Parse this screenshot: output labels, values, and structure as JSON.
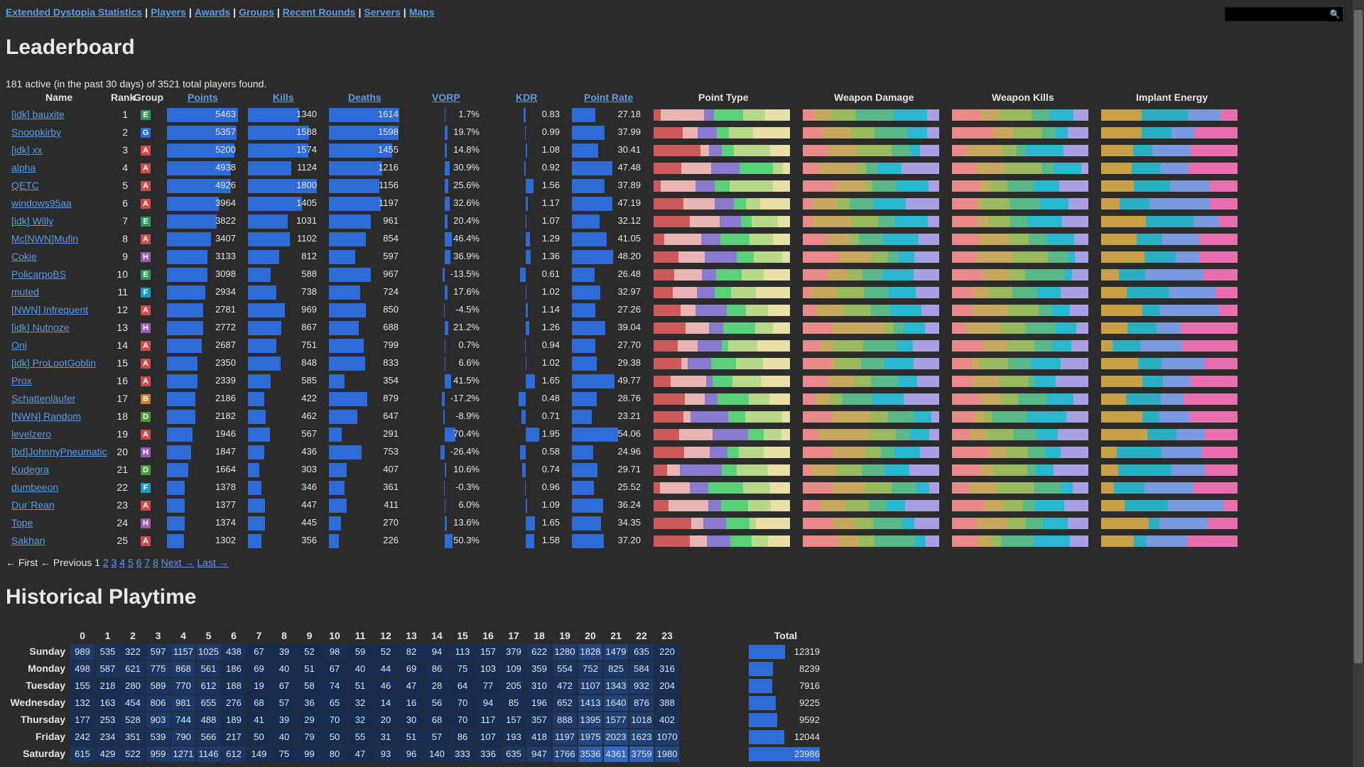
{
  "nav": {
    "links": [
      "Extended Dystopia Statistics",
      "Players",
      "Awards",
      "Groups",
      "Recent Rounds",
      "Servers",
      "Maps"
    ],
    "search_icon": "magnifier-icon"
  },
  "leaderboard": {
    "title": "Leaderboard",
    "summary": "181 active (in the past 30 days) of 3521 total players found.",
    "headers": {
      "name": "Name",
      "rank": "Rank",
      "group": "Group",
      "points": "Points",
      "kills": "Kills",
      "deaths": "Deaths",
      "vorp": "VORP",
      "kdr": "KDR",
      "point_rate": "Point Rate",
      "point_type": "Point Type",
      "weapon_damage": "Weapon Damage",
      "weapon_kills": "Weapon Kills",
      "implant_energy": "Implant Energy"
    },
    "group_colors": {
      "E": "#2a9c5a",
      "G": "#2a6bd6",
      "A": "#d04a4a",
      "H": "#9a5ab0",
      "F": "#1a9ac0",
      "B": "#d07a2a",
      "D": "#4a9a3a"
    },
    "rows": [
      {
        "name": "[idk] bauxite",
        "rank": "1",
        "group": "E",
        "points": "5463",
        "kills": "1340",
        "deaths": "1614",
        "vorp": "1.7%",
        "kdr": "0.83",
        "rate": "27.18"
      },
      {
        "name": "Snoopkirby",
        "rank": "2",
        "group": "G",
        "points": "5357",
        "kills": "1588",
        "deaths": "1598",
        "vorp": "19.7%",
        "kdr": "0.99",
        "rate": "37.99"
      },
      {
        "name": "[idk] xx",
        "rank": "3",
        "group": "A",
        "points": "5200",
        "kills": "1574",
        "deaths": "1455",
        "vorp": "14.8%",
        "kdr": "1.08",
        "rate": "30.41"
      },
      {
        "name": "alpha",
        "rank": "4",
        "group": "A",
        "points": "4938",
        "kills": "1124",
        "deaths": "1216",
        "vorp": "30.9%",
        "kdr": "0.92",
        "rate": "47.48"
      },
      {
        "name": "QETC",
        "rank": "5",
        "group": "A",
        "points": "4926",
        "kills": "1800",
        "deaths": "1156",
        "vorp": "25.6%",
        "kdr": "1.56",
        "rate": "37.89"
      },
      {
        "name": "windows95aa",
        "rank": "6",
        "group": "A",
        "points": "3964",
        "kills": "1405",
        "deaths": "1197",
        "vorp": "32.6%",
        "kdr": "1.17",
        "rate": "47.19"
      },
      {
        "name": "[idk] Willy",
        "rank": "7",
        "group": "E",
        "points": "3822",
        "kills": "1031",
        "deaths": "961",
        "vorp": "20.4%",
        "kdr": "1.07",
        "rate": "32.12"
      },
      {
        "name": "Mc[NWN]Mufin",
        "rank": "8",
        "group": "A",
        "points": "3407",
        "kills": "1102",
        "deaths": "854",
        "vorp": "46.4%",
        "kdr": "1.29",
        "rate": "41.05"
      },
      {
        "name": "Cokie",
        "rank": "9",
        "group": "H",
        "points": "3133",
        "kills": "812",
        "deaths": "597",
        "vorp": "36.9%",
        "kdr": "1.36",
        "rate": "48.20"
      },
      {
        "name": "PolicarpoBS",
        "rank": "10",
        "group": "E",
        "points": "3098",
        "kills": "588",
        "deaths": "967",
        "vorp": "-13.5%",
        "kdr": "0.61",
        "rate": "26.48"
      },
      {
        "name": "muted",
        "rank": "11",
        "group": "F",
        "points": "2934",
        "kills": "738",
        "deaths": "724",
        "vorp": "17.6%",
        "kdr": "1.02",
        "rate": "32.97"
      },
      {
        "name": "[NWN] Infrequent",
        "rank": "12",
        "group": "A",
        "points": "2781",
        "kills": "969",
        "deaths": "850",
        "vorp": "-4.5%",
        "kdr": "1.14",
        "rate": "27.26"
      },
      {
        "name": "[idk] Nutnoze",
        "rank": "13",
        "group": "H",
        "points": "2772",
        "kills": "867",
        "deaths": "688",
        "vorp": "21.2%",
        "kdr": "1.26",
        "rate": "39.04"
      },
      {
        "name": "Oni",
        "rank": "14",
        "group": "A",
        "points": "2687",
        "kills": "751",
        "deaths": "799",
        "vorp": "0.7%",
        "kdr": "0.94",
        "rate": "27.70"
      },
      {
        "name": "[idk] ProLootGoblin",
        "rank": "15",
        "group": "A",
        "points": "2350",
        "kills": "848",
        "deaths": "833",
        "vorp": "6.6%",
        "kdr": "1.02",
        "rate": "29.38"
      },
      {
        "name": "Prox",
        "rank": "16",
        "group": "A",
        "points": "2339",
        "kills": "585",
        "deaths": "354",
        "vorp": "41.5%",
        "kdr": "1.65",
        "rate": "49.77"
      },
      {
        "name": "Schattenläufer",
        "rank": "17",
        "group": "B",
        "points": "2186",
        "kills": "422",
        "deaths": "879",
        "vorp": "-17.2%",
        "kdr": "0.48",
        "rate": "28.76"
      },
      {
        "name": "[NWN] Random",
        "rank": "18",
        "group": "D",
        "points": "2182",
        "kills": "462",
        "deaths": "647",
        "vorp": "-8.9%",
        "kdr": "0.71",
        "rate": "23.21"
      },
      {
        "name": "levelzero",
        "rank": "19",
        "group": "A",
        "points": "1946",
        "kills": "567",
        "deaths": "291",
        "vorp": "70.4%",
        "kdr": "1.95",
        "rate": "54.06"
      },
      {
        "name": "[bd]JohnnyPneumatic",
        "rank": "20",
        "group": "H",
        "points": "1847",
        "kills": "436",
        "deaths": "753",
        "vorp": "-26.4%",
        "kdr": "0.58",
        "rate": "24.96"
      },
      {
        "name": "Kudegra",
        "rank": "21",
        "group": "D",
        "points": "1664",
        "kills": "303",
        "deaths": "407",
        "vorp": "10.6%",
        "kdr": "0.74",
        "rate": "29.71"
      },
      {
        "name": "dumbeeon",
        "rank": "22",
        "group": "F",
        "points": "1378",
        "kills": "346",
        "deaths": "361",
        "vorp": "-0.3%",
        "kdr": "0.96",
        "rate": "25.52"
      },
      {
        "name": "Dur`Rean",
        "rank": "23",
        "group": "A",
        "points": "1377",
        "kills": "447",
        "deaths": "411",
        "vorp": "6.0%",
        "kdr": "1.09",
        "rate": "36.24"
      },
      {
        "name": "Tope",
        "rank": "24",
        "group": "H",
        "points": "1374",
        "kills": "445",
        "deaths": "270",
        "vorp": "13.6%",
        "kdr": "1.65",
        "rate": "34.35"
      },
      {
        "name": "Sakhan",
        "rank": "25",
        "group": "A",
        "points": "1302",
        "kills": "356",
        "deaths": "226",
        "vorp": "50.3%",
        "kdr": "1.58",
        "rate": "37.20"
      }
    ],
    "palettes": {
      "point_type": [
        "#cc5a5a",
        "#e8b4b4",
        "#8a7ad0",
        "#5ad07a",
        "#b8d88a",
        "#e8e0a8"
      ],
      "weapon": [
        "#e88a8a",
        "#c8a860",
        "#9ab860",
        "#5ab888",
        "#2ab8d0",
        "#a8a0e0"
      ],
      "implant": [
        "#c8a048",
        "#2ab0c0",
        "#7a9ae0",
        "#e870b0"
      ]
    }
  },
  "pager": {
    "first": "← First",
    "prev": "← Previous",
    "current": "1",
    "pages": [
      "2",
      "3",
      "4",
      "5",
      "6",
      "7",
      "8"
    ],
    "next": "Next →",
    "last": "Last →"
  },
  "playtime": {
    "title": "Historical Playtime",
    "hours": [
      "0",
      "1",
      "2",
      "3",
      "4",
      "5",
      "6",
      "7",
      "8",
      "9",
      "10",
      "11",
      "12",
      "13",
      "14",
      "15",
      "16",
      "17",
      "18",
      "19",
      "20",
      "21",
      "22",
      "23"
    ],
    "total_label": "Total",
    "days": [
      {
        "day": "Sunday",
        "values": [
          989,
          535,
          322,
          597,
          1157,
          1025,
          438,
          67,
          39,
          52,
          98,
          59,
          52,
          82,
          94,
          113,
          157,
          379,
          622,
          1280,
          1828,
          1479,
          635,
          220
        ],
        "total": "12319"
      },
      {
        "day": "Monday",
        "values": [
          498,
          587,
          621,
          775,
          868,
          561,
          186,
          69,
          40,
          51,
          67,
          40,
          44,
          69,
          86,
          75,
          103,
          109,
          359,
          554,
          752,
          825,
          584,
          316
        ],
        "total": "8239"
      },
      {
        "day": "Tuesday",
        "values": [
          155,
          218,
          280,
          589,
          770,
          612,
          188,
          19,
          67,
          58,
          74,
          51,
          46,
          47,
          28,
          64,
          77,
          205,
          310,
          472,
          1107,
          1343,
          932,
          204
        ],
        "total": "7916"
      },
      {
        "day": "Wednesday",
        "values": [
          132,
          163,
          454,
          806,
          981,
          655,
          276,
          68,
          57,
          36,
          65,
          32,
          14,
          16,
          56,
          70,
          94,
          85,
          196,
          652,
          1413,
          1640,
          876,
          388
        ],
        "total": "9225"
      },
      {
        "day": "Thursday",
        "values": [
          177,
          253,
          528,
          903,
          744,
          488,
          189,
          41,
          39,
          29,
          70,
          32,
          20,
          30,
          68,
          70,
          117,
          157,
          357,
          888,
          1395,
          1577,
          1018,
          402
        ],
        "total": "9592"
      },
      {
        "day": "Friday",
        "values": [
          242,
          234,
          351,
          539,
          790,
          566,
          217,
          50,
          40,
          79,
          50,
          55,
          31,
          51,
          57,
          86,
          107,
          193,
          418,
          1197,
          1975,
          2023,
          1623,
          1070
        ],
        "total": "12044"
      },
      {
        "day": "Saturday",
        "values": [
          615,
          429,
          522,
          959,
          1271,
          1146,
          612,
          149,
          75,
          99,
          80,
          47,
          93,
          96,
          140,
          333,
          336,
          635,
          947,
          1766,
          3536,
          4361,
          3759,
          1980
        ],
        "total": "23986"
      }
    ]
  }
}
